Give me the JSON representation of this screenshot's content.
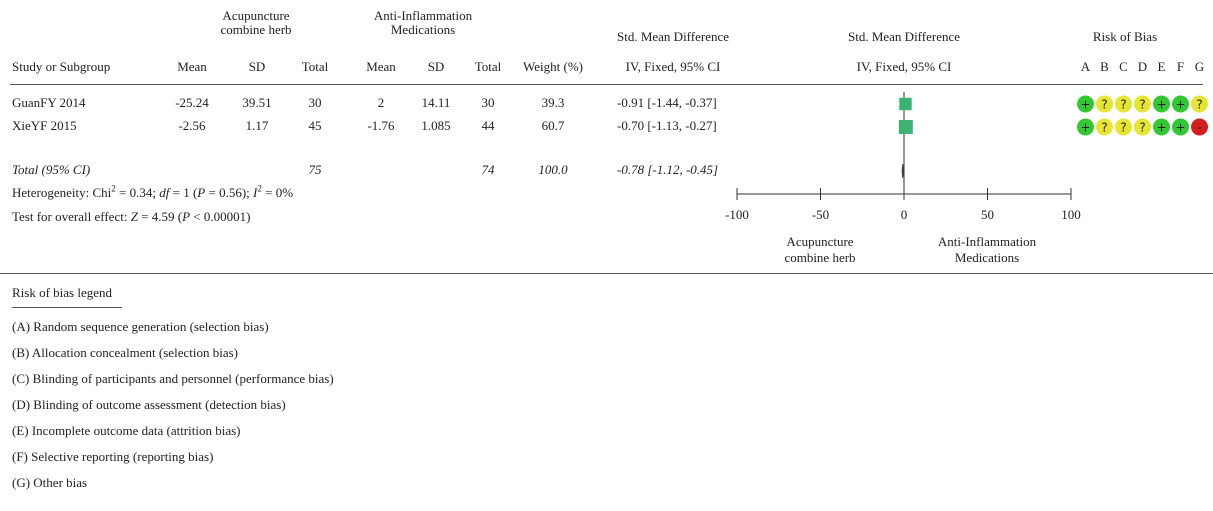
{
  "chart_data": {
    "type": "forest",
    "group_headers": {
      "group1": "Acupuncture combine herb",
      "group1_line1": "Acupuncture",
      "group1_line2": "combine herb",
      "group2": "Anti-Inflammation Medications",
      "group2_line1": "Anti-Inflammation",
      "group2_line2": "Medications"
    },
    "columns": {
      "study": "Study or Subgroup",
      "mean1": "Mean",
      "sd1": "SD",
      "total1": "Total",
      "mean2": "Mean",
      "sd2": "SD",
      "total2": "Total",
      "weight": "Weight (%)",
      "smd_title": "Std. Mean Difference",
      "smd_sub": "IV, Fixed, 95% CI",
      "plot_title": "Std. Mean Difference",
      "plot_sub": "IV, Fixed, 95% CI",
      "rob_title": "Risk of Bias",
      "rob_letters": [
        "A",
        "B",
        "C",
        "D",
        "E",
        "F",
        "G"
      ]
    },
    "studies": [
      {
        "name": "GuanFY 2014",
        "mean1": "-25.24",
        "sd1": "39.51",
        "total1": "30",
        "mean2": "2",
        "sd2": "14.11",
        "total2": "30",
        "weight": "39.3",
        "ci_text": "-0.91 [-1.44, -0.37]",
        "smd": -0.91,
        "ci_low": -1.44,
        "ci_high": -0.37,
        "weight_value": 39.3,
        "rob": [
          "+",
          "?",
          "?",
          "?",
          "+",
          "+",
          "?"
        ]
      },
      {
        "name": "XieYF 2015",
        "mean1": "-2.56",
        "sd1": "1.17",
        "total1": "45",
        "mean2": "-1.76",
        "sd2": "1.085",
        "total2": "44",
        "weight": "60.7",
        "ci_text": "-0.70 [-1.13, -0.27]",
        "smd": -0.7,
        "ci_low": -1.13,
        "ci_high": -0.27,
        "weight_value": 60.7,
        "rob": [
          "+",
          "?",
          "?",
          "?",
          "+",
          "+",
          "-"
        ]
      }
    ],
    "total": {
      "label": "Total (95% CI)",
      "total1": "75",
      "total2": "74",
      "weight": "100.0",
      "ci_text": "-0.78 [-1.12, -0.45]",
      "smd": -0.78,
      "ci_low": -1.12,
      "ci_high": -0.45
    },
    "heterogeneity": {
      "prefix": "Heterogeneity: Chi",
      "exp": "2",
      "chi_val": " = 0.34; ",
      "df_label": "df",
      "df_val": " = 1 (",
      "p_label": "P",
      "p_val": " = 0.56); ",
      "i_label": "I",
      "i_exp": "2",
      "i_val": " = 0%"
    },
    "overall_effect": {
      "prefix": "Test for overall effect: ",
      "z_label": "Z",
      "z_val": " = 4.59 (",
      "p_label": "P",
      "p_val": " < 0.00001)"
    },
    "axis": {
      "min": -100,
      "max": 100,
      "ticks": [
        -100,
        -50,
        0,
        50,
        100
      ],
      "tick_labels": [
        "-100",
        "-50",
        "0",
        "50",
        "100"
      ],
      "favours_left_1": "Acupuncture",
      "favours_left_2": "combine herb",
      "favours_right_1": "Anti-Inflammation",
      "favours_right_2": "Medications"
    },
    "colors": {
      "square": "#3cb371",
      "low": "#32c832",
      "unclear": "#e6e632",
      "high": "#d21e1e",
      "text": "#222222"
    }
  },
  "legend": {
    "title": "Risk of bias legend",
    "items": [
      "(A) Random sequence generation (selection bias)",
      "(B) Allocation concealment (selection bias)",
      "(C) Blinding of participants and personnel (performance bias)",
      "(D) Blinding of outcome assessment (detection bias)",
      "(E) Incomplete outcome data (attrition bias)",
      "(F) Selective reporting (reporting bias)",
      "(G) Other bias"
    ]
  }
}
